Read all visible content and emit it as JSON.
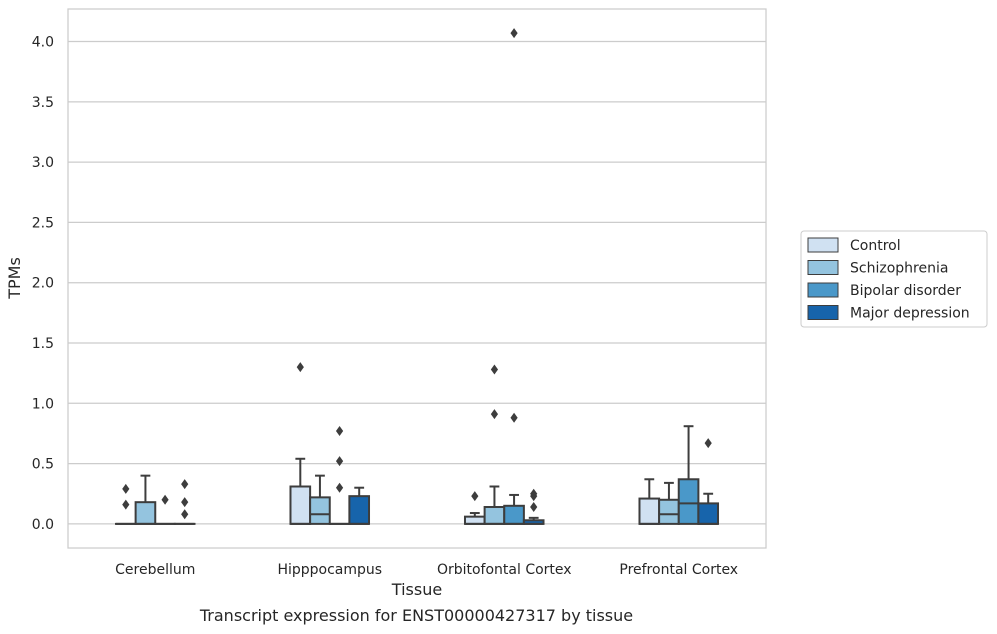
{
  "caption": "Transcript expression for ENST00000427317 by tissue",
  "chart_data": {
    "type": "box",
    "xlabel": "Tissue",
    "ylabel": "TPMs",
    "ylim": [
      -0.2,
      4.27
    ],
    "yticks": [
      0.0,
      0.5,
      1.0,
      1.5,
      2.0,
      2.5,
      3.0,
      3.5,
      4.0
    ],
    "ytick_labels": [
      "0.0",
      "0.5",
      "1.0",
      "1.5",
      "2.0",
      "2.5",
      "3.0",
      "3.5",
      "4.0"
    ],
    "grid": "horizontal",
    "legend_position": "right",
    "categories": [
      "Cerebellum",
      "Hipppocampus",
      "Orbitofontal Cortex",
      "Prefrontal Cortex"
    ],
    "series": [
      {
        "name": "Control",
        "color": "#d0e1f2",
        "boxes": [
          {
            "q1": 0.0,
            "median": 0.0,
            "q3": 0.0,
            "whisker_low": 0.0,
            "whisker_high": 0.0,
            "outliers": [
              0.29,
              0.16
            ]
          },
          {
            "q1": 0.0,
            "median": 0.0,
            "q3": 0.31,
            "whisker_low": 0.0,
            "whisker_high": 0.54,
            "outliers": [
              1.3
            ]
          },
          {
            "q1": 0.0,
            "median": 0.0,
            "q3": 0.06,
            "whisker_low": 0.0,
            "whisker_high": 0.09,
            "outliers": [
              0.23
            ]
          },
          {
            "q1": 0.0,
            "median": 0.0,
            "q3": 0.21,
            "whisker_low": 0.0,
            "whisker_high": 0.37,
            "outliers": []
          }
        ]
      },
      {
        "name": "Schizophrenia",
        "color": "#94c4df",
        "boxes": [
          {
            "q1": 0.0,
            "median": 0.0,
            "q3": 0.18,
            "whisker_low": 0.0,
            "whisker_high": 0.4,
            "outliers": []
          },
          {
            "q1": 0.0,
            "median": 0.08,
            "q3": 0.22,
            "whisker_low": 0.0,
            "whisker_high": 0.4,
            "outliers": []
          },
          {
            "q1": 0.0,
            "median": 0.0,
            "q3": 0.14,
            "whisker_low": 0.0,
            "whisker_high": 0.31,
            "outliers": [
              1.28,
              0.91
            ]
          },
          {
            "q1": 0.0,
            "median": 0.08,
            "q3": 0.2,
            "whisker_low": 0.0,
            "whisker_high": 0.34,
            "outliers": []
          }
        ]
      },
      {
        "name": "Bipolar disorder",
        "color": "#4a98c9",
        "boxes": [
          {
            "q1": 0.0,
            "median": 0.0,
            "q3": 0.0,
            "whisker_low": 0.0,
            "whisker_high": 0.0,
            "outliers": [
              0.2
            ]
          },
          {
            "q1": 0.0,
            "median": 0.0,
            "q3": 0.0,
            "whisker_low": 0.0,
            "whisker_high": 0.0,
            "outliers": [
              0.77,
              0.52,
              0.3
            ]
          },
          {
            "q1": 0.0,
            "median": 0.0,
            "q3": 0.15,
            "whisker_low": 0.0,
            "whisker_high": 0.24,
            "outliers": [
              4.07,
              0.88
            ]
          },
          {
            "q1": 0.0,
            "median": 0.17,
            "q3": 0.37,
            "whisker_low": 0.0,
            "whisker_high": 0.81,
            "outliers": []
          }
        ]
      },
      {
        "name": "Major depression",
        "color": "#1764ab",
        "boxes": [
          {
            "q1": 0.0,
            "median": 0.0,
            "q3": 0.0,
            "whisker_low": 0.0,
            "whisker_high": 0.0,
            "outliers": [
              0.33,
              0.18,
              0.08
            ]
          },
          {
            "q1": 0.0,
            "median": 0.0,
            "q3": 0.23,
            "whisker_low": 0.0,
            "whisker_high": 0.3,
            "outliers": []
          },
          {
            "q1": 0.0,
            "median": 0.0,
            "q3": 0.03,
            "whisker_low": 0.0,
            "whisker_high": 0.05,
            "outliers": [
              0.25,
              0.23,
              0.14
            ]
          },
          {
            "q1": 0.0,
            "median": 0.0,
            "q3": 0.17,
            "whisker_low": 0.0,
            "whisker_high": 0.25,
            "outliers": [
              0.67
            ]
          }
        ]
      }
    ]
  }
}
